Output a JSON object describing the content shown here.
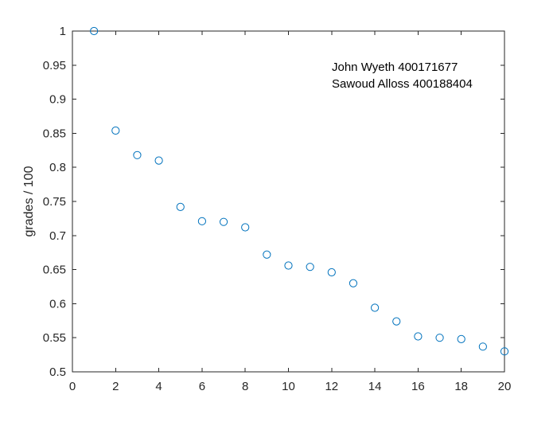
{
  "chart_data": {
    "type": "scatter",
    "title": "",
    "xlabel": "",
    "ylabel": "grades / 100",
    "xlim": [
      0,
      20
    ],
    "ylim": [
      0.5,
      1
    ],
    "xticks": [
      "0",
      "2",
      "4",
      "6",
      "8",
      "10",
      "12",
      "14",
      "16",
      "18",
      "20"
    ],
    "yticks": [
      "0.5",
      "0.55",
      "0.6",
      "0.65",
      "0.7",
      "0.75",
      "0.8",
      "0.85",
      "0.9",
      "0.95",
      "1"
    ],
    "grid": false,
    "marker": "open-circle",
    "marker_color": "#0072BD",
    "annotations": [
      "John Wyeth 400171677",
      "Sawoud Alloss 400188404"
    ],
    "series": [
      {
        "x": [
          1,
          2,
          3,
          4,
          5,
          6,
          7,
          8,
          9,
          10,
          11,
          12,
          13,
          14,
          15,
          16,
          17,
          18,
          19,
          20
        ],
        "y": [
          1.0,
          0.854,
          0.818,
          0.81,
          0.742,
          0.721,
          0.72,
          0.712,
          0.672,
          0.656,
          0.654,
          0.646,
          0.63,
          0.594,
          0.574,
          0.552,
          0.55,
          0.548,
          0.537,
          0.53
        ]
      }
    ]
  }
}
